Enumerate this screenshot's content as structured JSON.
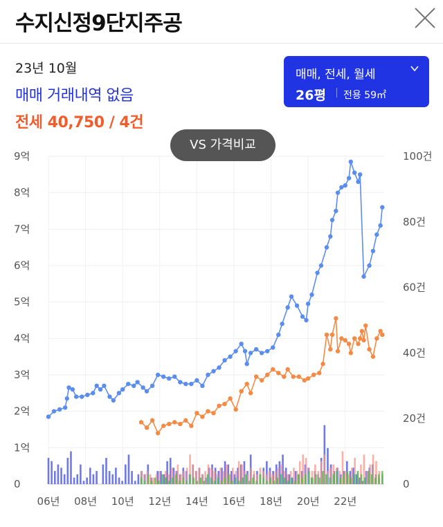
{
  "header": {
    "title": "수지신정9단지주공",
    "close_icon": "close-icon"
  },
  "summary": {
    "date": "23년 10월",
    "sale_text": "매매 거래내역 없음",
    "jeonse_text": "전세 40,750 / 4건",
    "sale_color": "#2433d6",
    "jeonse_color": "#f25c2a"
  },
  "filter": {
    "types": "매매, 전세, 월세",
    "chevron": "chevron-down-icon",
    "size": "26평",
    "area": "전용 59㎡",
    "bg_color": "#2034e3"
  },
  "vs_button": {
    "label": "VS 가격비교"
  },
  "chart_data": {
    "type": "line",
    "x_ticks": [
      "06년",
      "08년",
      "10년",
      "12년",
      "14년",
      "16년",
      "18년",
      "20년",
      "22년"
    ],
    "y_left_ticks": [
      "0",
      "1억",
      "2억",
      "3억",
      "4억",
      "5억",
      "6억",
      "7억",
      "8억",
      "9억"
    ],
    "y_right_ticks": [
      "0",
      "20건",
      "40건",
      "60건",
      "80건",
      "100건"
    ],
    "y_left_range": [
      0,
      9
    ],
    "y_right_range": [
      0,
      100
    ],
    "x_range": [
      2006,
      2024.1
    ],
    "grid": true,
    "series": [
      {
        "color": "#5b8def",
        "type": "line",
        "axis": "left",
        "points": [
          [
            2006.0,
            1.85
          ],
          [
            2006.3,
            2.0
          ],
          [
            2006.6,
            2.05
          ],
          [
            2006.9,
            2.1
          ],
          [
            2007.0,
            2.35
          ],
          [
            2007.1,
            2.65
          ],
          [
            2007.3,
            2.6
          ],
          [
            2007.5,
            2.4
          ],
          [
            2007.8,
            2.4
          ],
          [
            2008.1,
            2.45
          ],
          [
            2008.4,
            2.5
          ],
          [
            2008.6,
            2.7
          ],
          [
            2008.8,
            2.6
          ],
          [
            2009.0,
            2.7
          ],
          [
            2009.3,
            2.4
          ],
          [
            2009.5,
            2.3
          ],
          [
            2009.8,
            2.5
          ],
          [
            2010.0,
            2.6
          ],
          [
            2010.3,
            2.75
          ],
          [
            2010.6,
            2.7
          ],
          [
            2010.8,
            2.8
          ],
          [
            2011.1,
            2.65
          ],
          [
            2011.3,
            2.55
          ],
          [
            2011.6,
            2.7
          ],
          [
            2011.9,
            3.0
          ],
          [
            2012.2,
            2.95
          ],
          [
            2012.5,
            2.9
          ],
          [
            2012.8,
            2.95
          ],
          [
            2013.1,
            2.8
          ],
          [
            2013.4,
            2.75
          ],
          [
            2013.7,
            2.75
          ],
          [
            2014.0,
            2.85
          ],
          [
            2014.3,
            2.7
          ],
          [
            2014.6,
            3.0
          ],
          [
            2014.9,
            3.1
          ],
          [
            2015.2,
            3.2
          ],
          [
            2015.5,
            3.4
          ],
          [
            2015.8,
            3.5
          ],
          [
            2016.1,
            3.65
          ],
          [
            2016.4,
            3.85
          ],
          [
            2016.6,
            3.65
          ],
          [
            2016.7,
            3.3
          ],
          [
            2016.9,
            3.6
          ],
          [
            2017.2,
            3.7
          ],
          [
            2017.5,
            3.6
          ],
          [
            2017.8,
            3.65
          ],
          [
            2018.1,
            3.75
          ],
          [
            2018.4,
            4.1
          ],
          [
            2018.6,
            4.4
          ],
          [
            2018.9,
            4.85
          ],
          [
            2019.1,
            5.15
          ],
          [
            2019.4,
            4.9
          ],
          [
            2019.7,
            4.6
          ],
          [
            2019.9,
            4.5
          ],
          [
            2020.0,
            4.95
          ],
          [
            2020.2,
            5.2
          ],
          [
            2020.5,
            5.8
          ],
          [
            2020.7,
            6.0
          ],
          [
            2021.0,
            6.5
          ],
          [
            2021.2,
            6.8
          ],
          [
            2021.3,
            7.25
          ],
          [
            2021.5,
            7.5
          ],
          [
            2021.6,
            8.0
          ],
          [
            2021.8,
            8.15
          ],
          [
            2022.0,
            8.2
          ],
          [
            2022.2,
            8.4
          ],
          [
            2022.3,
            8.85
          ],
          [
            2022.5,
            8.55
          ],
          [
            2022.7,
            8.3
          ],
          [
            2022.8,
            8.5
          ],
          [
            2023.0,
            5.7
          ],
          [
            2023.3,
            6.0
          ],
          [
            2023.5,
            6.4
          ],
          [
            2023.7,
            6.85
          ],
          [
            2023.9,
            7.1
          ],
          [
            2024.0,
            7.6
          ]
        ]
      },
      {
        "color": "#f58a45",
        "type": "line",
        "axis": "left",
        "points": [
          [
            2011.0,
            1.7
          ],
          [
            2011.3,
            1.55
          ],
          [
            2011.6,
            1.75
          ],
          [
            2011.9,
            1.4
          ],
          [
            2012.2,
            1.6
          ],
          [
            2012.5,
            1.65
          ],
          [
            2012.8,
            1.7
          ],
          [
            2013.1,
            1.65
          ],
          [
            2013.4,
            1.75
          ],
          [
            2013.7,
            1.6
          ],
          [
            2014.0,
            1.95
          ],
          [
            2014.3,
            1.85
          ],
          [
            2014.6,
            2.0
          ],
          [
            2014.9,
            1.95
          ],
          [
            2015.2,
            2.15
          ],
          [
            2015.5,
            2.2
          ],
          [
            2015.8,
            2.35
          ],
          [
            2016.1,
            2.05
          ],
          [
            2016.4,
            2.55
          ],
          [
            2016.7,
            2.75
          ],
          [
            2016.9,
            2.5
          ],
          [
            2017.2,
            2.95
          ],
          [
            2017.5,
            2.85
          ],
          [
            2017.8,
            3.0
          ],
          [
            2018.1,
            3.15
          ],
          [
            2018.4,
            3.05
          ],
          [
            2018.7,
            2.95
          ],
          [
            2018.9,
            3.15
          ],
          [
            2019.2,
            2.95
          ],
          [
            2019.5,
            2.95
          ],
          [
            2019.8,
            2.85
          ],
          [
            2020.0,
            2.9
          ],
          [
            2020.3,
            3.0
          ],
          [
            2020.6,
            3.05
          ],
          [
            2020.8,
            3.3
          ],
          [
            2021.0,
            4.1
          ],
          [
            2021.2,
            3.7
          ],
          [
            2021.3,
            4.1
          ],
          [
            2021.5,
            4.55
          ],
          [
            2021.6,
            3.65
          ],
          [
            2021.8,
            4.0
          ],
          [
            2022.0,
            3.95
          ],
          [
            2022.2,
            3.85
          ],
          [
            2022.3,
            3.6
          ],
          [
            2022.5,
            4.0
          ],
          [
            2022.7,
            3.85
          ],
          [
            2022.8,
            4.0
          ],
          [
            2022.9,
            4.2
          ],
          [
            2023.0,
            3.95
          ],
          [
            2023.1,
            4.35
          ],
          [
            2023.3,
            3.7
          ],
          [
            2023.5,
            3.5
          ],
          [
            2023.7,
            4.0
          ],
          [
            2023.9,
            4.2
          ],
          [
            2024.0,
            4.1
          ]
        ]
      }
    ],
    "volume_sale": {
      "color": "#5560e8",
      "axis": "right",
      "values": [
        8,
        7,
        4,
        6,
        5,
        3,
        8,
        10,
        2,
        3,
        6,
        1,
        2,
        5,
        3,
        4,
        0,
        6,
        8,
        4,
        3,
        5,
        2,
        1,
        6,
        9,
        4,
        1,
        3,
        4,
        3,
        6,
        2,
        0,
        4,
        4,
        3,
        7,
        8,
        5,
        4,
        3,
        5,
        4,
        3,
        6,
        4,
        5,
        3,
        2,
        5,
        6,
        5,
        4,
        5,
        7,
        6,
        4,
        3,
        5,
        6,
        7,
        4,
        9,
        3,
        4,
        3,
        5,
        7,
        5,
        4,
        6,
        7,
        9,
        5,
        3,
        2,
        4,
        3,
        4,
        6,
        5,
        2,
        4,
        3,
        8,
        18,
        11,
        6,
        4,
        5,
        3,
        4,
        7,
        4,
        5,
        3,
        2,
        1,
        4,
        5,
        6,
        3,
        2,
        3
      ]
    },
    "volume_jeonse": {
      "color": "#f5958a",
      "axis": "right",
      "values": [
        4,
        3,
        4,
        3,
        2,
        3,
        4,
        3,
        4,
        3,
        5,
        4,
        6,
        3,
        4,
        5,
        9,
        6,
        4,
        5,
        3,
        4,
        6,
        5,
        4,
        3,
        5,
        4,
        6,
        3,
        5,
        4,
        7,
        6,
        4,
        3,
        5,
        4,
        3,
        5,
        4,
        3,
        4,
        3,
        4,
        5,
        6,
        4,
        3,
        4,
        5,
        4,
        7,
        9,
        8,
        5,
        4,
        6,
        4,
        7,
        9,
        4,
        5,
        6,
        5,
        4,
        10,
        4,
        3,
        5,
        8,
        4,
        6,
        9,
        4,
        6,
        9,
        7,
        4,
        3
      ]
    },
    "volume_wolse": {
      "color": "#4cc14a",
      "axis": "right",
      "values": [
        2,
        1,
        3,
        1,
        2,
        1,
        3,
        2,
        1,
        2,
        3,
        1,
        2,
        1,
        3,
        2,
        1,
        2,
        1,
        3,
        2,
        1,
        2,
        1,
        2,
        3,
        1,
        2,
        1,
        2,
        3,
        1,
        2,
        1,
        3,
        2,
        1,
        2,
        1,
        2,
        3,
        2,
        1,
        2,
        1,
        3,
        2,
        3,
        4,
        2,
        3,
        2,
        4,
        3,
        2,
        3,
        4,
        2,
        3,
        4,
        2,
        3,
        4,
        3,
        2,
        4,
        3,
        2,
        3,
        4
      ]
    }
  }
}
